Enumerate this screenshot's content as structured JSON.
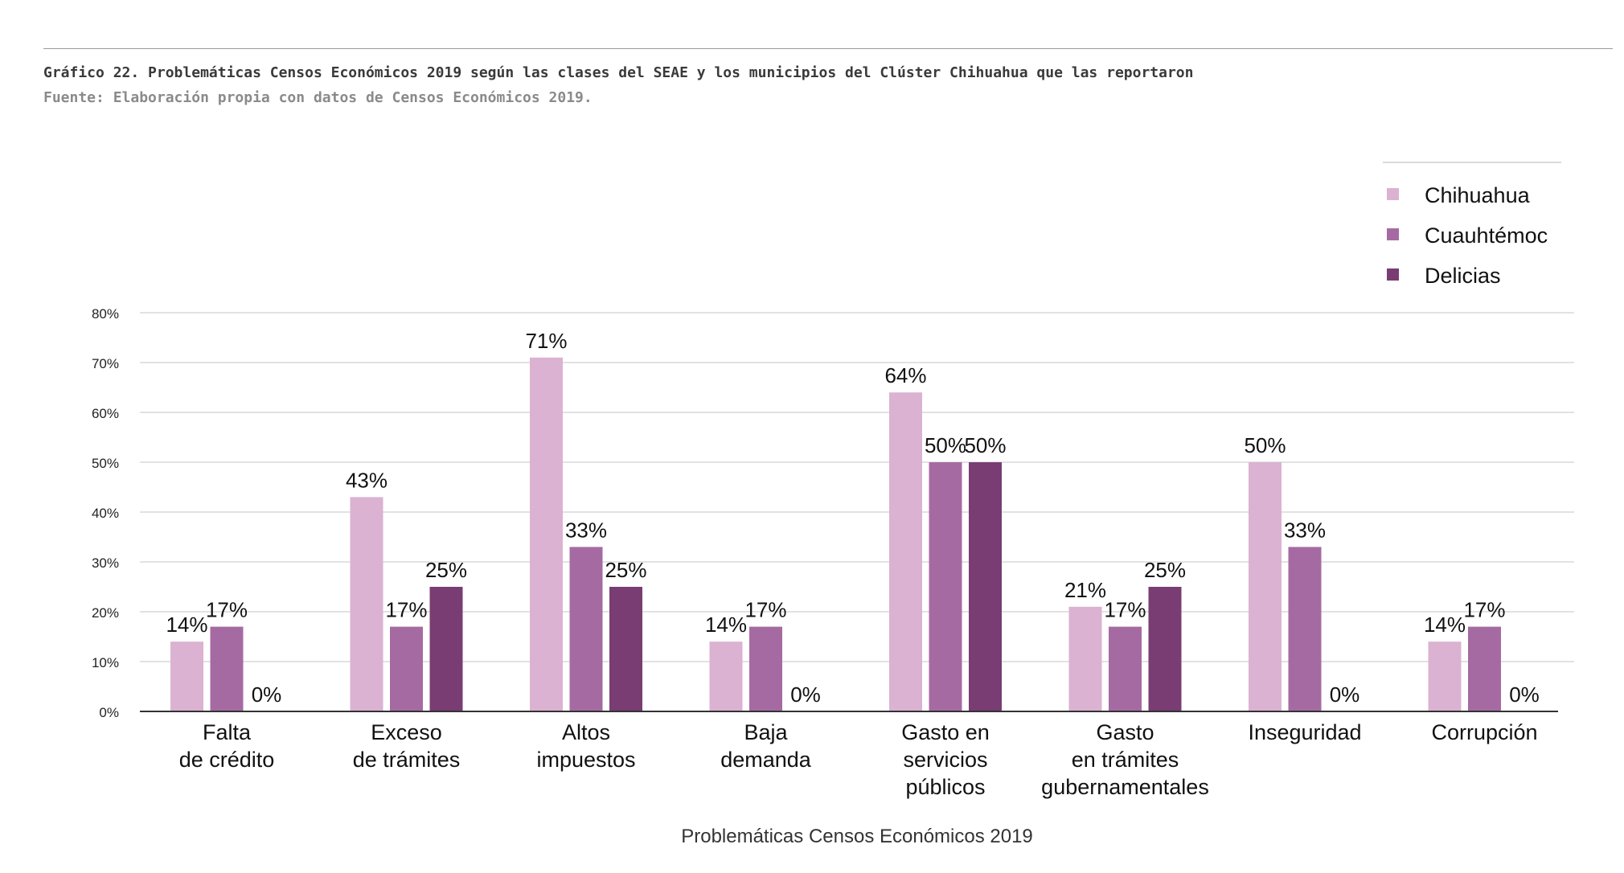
{
  "caption": {
    "title": "Gráfico 22. Problemáticas Censos Económicos 2019 según las clases del SEAE y los municipios del Clúster Chihuahua que las reportaron",
    "source": "Fuente: Elaboración propia con datos de Censos Económicos 2019."
  },
  "chart_data": {
    "type": "bar",
    "xlabel": "Problemáticas Censos Económicos 2019",
    "ylabel": "",
    "ylim": [
      0,
      80
    ],
    "yticks": [
      "0%",
      "10%",
      "20%",
      "30%",
      "40%",
      "50%",
      "60%",
      "70%",
      "80%"
    ],
    "grid": true,
    "legend_position": "top-right",
    "categories": [
      [
        "Falta",
        "de crédito"
      ],
      [
        "Exceso",
        "de trámites"
      ],
      [
        "Altos",
        "impuestos"
      ],
      [
        "Baja",
        "demanda"
      ],
      [
        "Gasto en",
        "servicios",
        "públicos"
      ],
      [
        "Gasto",
        "en trámites",
        "gubernamentales"
      ],
      [
        "Inseguridad"
      ],
      [
        "Corrupción"
      ]
    ],
    "series": [
      {
        "name": "Chihuahua",
        "color": "#dbb2d1",
        "values": [
          14,
          43,
          71,
          14,
          64,
          21,
          50,
          14
        ],
        "labels": [
          "14%",
          "43%",
          "71%",
          "14%",
          "64%",
          "21%",
          "50%",
          "14%"
        ]
      },
      {
        "name": "Cuauhtémoc",
        "color": "#a66aa3",
        "values": [
          17,
          17,
          33,
          17,
          50,
          17,
          33,
          17
        ],
        "labels": [
          "17%",
          "17%",
          "33%",
          "17%",
          "50%",
          "17%",
          "33%",
          "17%"
        ]
      },
      {
        "name": "Delicias",
        "color": "#793d74",
        "values": [
          0,
          25,
          25,
          0,
          50,
          25,
          0,
          0
        ],
        "labels": [
          "0%",
          "25%",
          "25%",
          "0%",
          "50%",
          "25%",
          "0%",
          "0%"
        ]
      }
    ]
  }
}
